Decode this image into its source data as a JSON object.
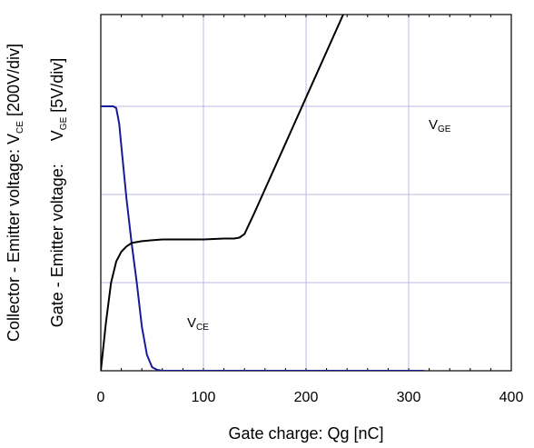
{
  "chart_data": {
    "type": "line",
    "title": "",
    "xlabel": "Gate charge: Qg [nC]",
    "ylabel_vce": {
      "prefix": "Collector - Emitter voltage: V",
      "sub": "CE",
      "suffix": " [200V/div]"
    },
    "ylabel_vge": {
      "prefix": "Gate - Emitter voltage:     V",
      "sub": "GE",
      "suffix": " [5V/div]"
    },
    "xlim": [
      0,
      400
    ],
    "ylim_divisions": [
      0,
      3
    ],
    "grid": true,
    "x_ticks": [
      "0",
      "100",
      "200",
      "300",
      "400"
    ],
    "series": [
      {
        "name_main": "V",
        "name_sub": "GE",
        "color": "#000000",
        "units": "div",
        "x": [
          0,
          5,
          10,
          15,
          20,
          25,
          30,
          40,
          50,
          60,
          80,
          100,
          120,
          130,
          135,
          140,
          150,
          175,
          200,
          250,
          300,
          320
        ],
        "y": [
          0,
          0.55,
          1.0,
          1.24,
          1.35,
          1.41,
          1.45,
          1.47,
          1.48,
          1.49,
          1.49,
          1.49,
          1.5,
          1.5,
          1.51,
          1.55,
          1.8,
          2.45,
          3.1,
          4.4,
          5.7,
          6.25
        ]
      },
      {
        "name_main": "V",
        "name_sub": "CE",
        "color": "#1a1a99",
        "units": "div",
        "x": [
          0,
          12,
          15,
          18,
          20,
          25,
          30,
          35,
          40,
          45,
          50,
          55,
          60,
          100,
          200,
          315
        ],
        "y": [
          3.0,
          3.0,
          2.98,
          2.8,
          2.55,
          1.95,
          1.45,
          1.0,
          0.5,
          0.18,
          0.04,
          0.01,
          0.0,
          0.0,
          0.0,
          0.0
        ]
      }
    ]
  }
}
